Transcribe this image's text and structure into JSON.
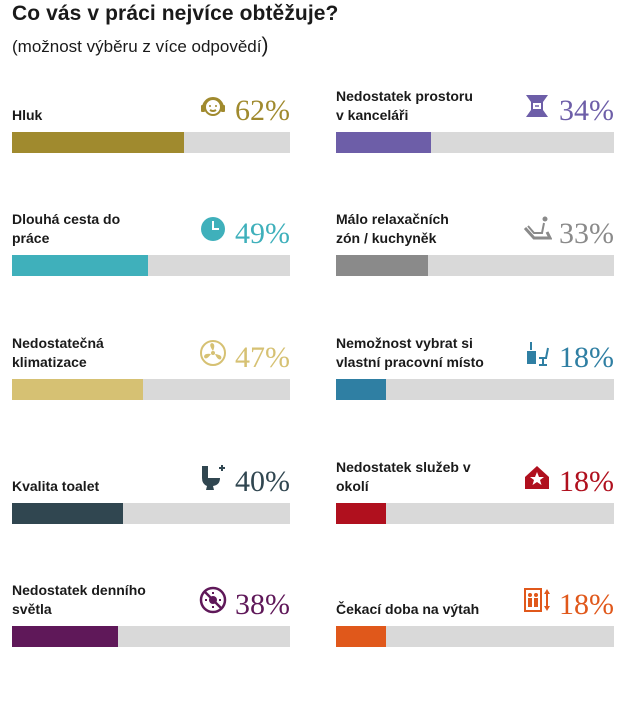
{
  "title": "Co vás v práci nejvíce obtěžuje?",
  "subtitle": "(možnost výběru z více odpovědí",
  "subtitle_paren": ")",
  "chart_data": {
    "type": "bar",
    "unit": "%",
    "xlim": [
      0,
      100
    ],
    "categories": [
      "Hluk",
      "Dlouhá cesta do práce",
      "Nedostatečná klimatizace",
      "Kvalita toalet",
      "Nedostatek denního světla",
      "Nedostatek prostoru v kanceláři",
      "Málo relaxačních zón / kuchyněk",
      "Nemožnost vybrat si vlastní pracovní místo",
      "Nedostatek služeb v okolí",
      "Čekací doba na výtah"
    ],
    "values": [
      62,
      49,
      47,
      40,
      38,
      34,
      33,
      18,
      18,
      18
    ],
    "items": [
      {
        "label_lines": [
          "Hluk"
        ],
        "value": 62,
        "value_text": "62%",
        "color": "#a08a2e",
        "icon": "headphones-icon"
      },
      {
        "label_lines": [
          "Dlouhá cesta do",
          "práce"
        ],
        "value": 49,
        "value_text": "49%",
        "color": "#3fb0bb",
        "icon": "clock-icon"
      },
      {
        "label_lines": [
          "Nedostatečná",
          "klimatizace"
        ],
        "value": 47,
        "value_text": "47%",
        "color": "#d6c173",
        "icon": "fan-icon"
      },
      {
        "label_lines": [
          "Kvalita toalet"
        ],
        "value": 40,
        "value_text": "40%",
        "color": "#304650",
        "icon": "toilet-icon"
      },
      {
        "label_lines": [
          "Nedostatek denního",
          "světla"
        ],
        "value": 38,
        "value_text": "38%",
        "color": "#5f1859",
        "icon": "no-sun-icon"
      },
      {
        "label_lines": [
          "Nedostatek prostoru",
          "v kanceláři"
        ],
        "value": 34,
        "value_text": "34%",
        "color": "#6d5ea8",
        "icon": "cramped-space-icon"
      },
      {
        "label_lines": [
          "Málo relaxačních",
          "zón / kuchyněk"
        ],
        "value": 33,
        "value_text": "33%",
        "color": "#8a8a8a",
        "icon": "relax-chair-icon"
      },
      {
        "label_lines": [
          "Nemožnost vybrat si",
          "vlastní pracovní místo"
        ],
        "value": 18,
        "value_text": "18%",
        "color": "#2f7fa3",
        "icon": "desk-chair-icon"
      },
      {
        "label_lines": [
          "Nedostatek služeb v",
          "okolí"
        ],
        "value": 18,
        "value_text": "18%",
        "color": "#b0101e",
        "icon": "house-star-icon"
      },
      {
        "label_lines": [
          "Čekací doba na výtah"
        ],
        "value": 18,
        "value_text": "18%",
        "color": "#e0581b",
        "icon": "elevator-icon"
      }
    ]
  }
}
